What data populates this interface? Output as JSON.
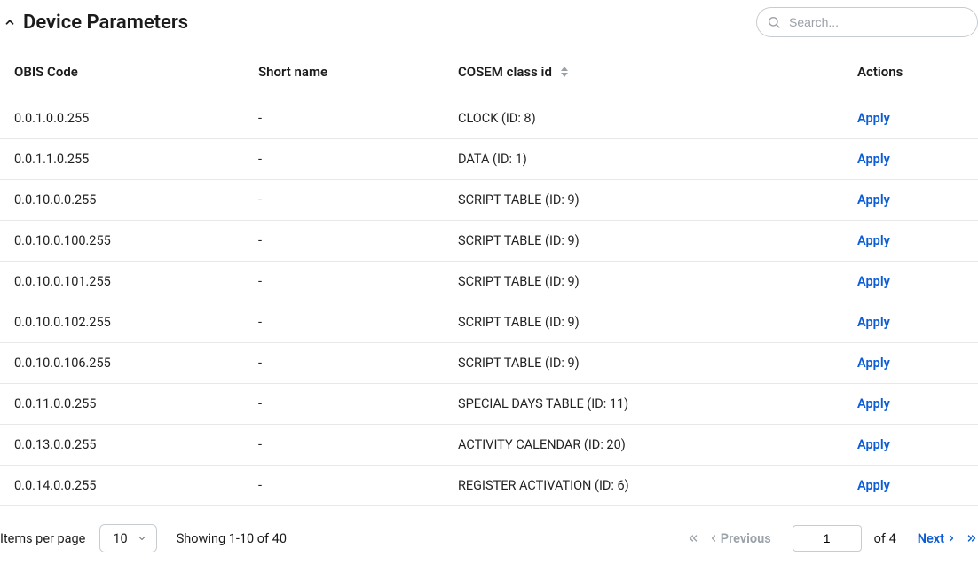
{
  "header": {
    "title": "Device Parameters",
    "search_placeholder": "Search..."
  },
  "table": {
    "columns": {
      "obis": "OBIS Code",
      "short": "Short name",
      "cosem": "COSEM class id",
      "actions": "Actions"
    },
    "apply_label": "Apply",
    "rows": [
      {
        "obis": "0.0.1.0.0.255",
        "short": "-",
        "cosem": "CLOCK (ID: 8)"
      },
      {
        "obis": "0.0.1.1.0.255",
        "short": "-",
        "cosem": "DATA (ID: 1)"
      },
      {
        "obis": "0.0.10.0.0.255",
        "short": "-",
        "cosem": "SCRIPT TABLE (ID: 9)"
      },
      {
        "obis": "0.0.10.0.100.255",
        "short": "-",
        "cosem": "SCRIPT TABLE (ID: 9)"
      },
      {
        "obis": "0.0.10.0.101.255",
        "short": "-",
        "cosem": "SCRIPT TABLE (ID: 9)"
      },
      {
        "obis": "0.0.10.0.102.255",
        "short": "-",
        "cosem": "SCRIPT TABLE (ID: 9)"
      },
      {
        "obis": "0.0.10.0.106.255",
        "short": "-",
        "cosem": "SCRIPT TABLE (ID: 9)"
      },
      {
        "obis": "0.0.11.0.0.255",
        "short": "-",
        "cosem": "SPECIAL DAYS TABLE (ID: 11)"
      },
      {
        "obis": "0.0.13.0.0.255",
        "short": "-",
        "cosem": "ACTIVITY CALENDAR (ID: 20)"
      },
      {
        "obis": "0.0.14.0.0.255",
        "short": "-",
        "cosem": "REGISTER ACTIVATION (ID: 6)"
      }
    ]
  },
  "pagination": {
    "items_per_page_label": "Items per page",
    "page_size": "10",
    "showing_text": "Showing 1-10 of 40",
    "previous_label": "Previous",
    "next_label": "Next",
    "current_page": "1",
    "total_pages_text": "of 4"
  },
  "colors": {
    "link": "#0b5cd7",
    "border": "#e6e8ea",
    "muted": "#9aa1a9",
    "text": "#1b1b1b"
  }
}
